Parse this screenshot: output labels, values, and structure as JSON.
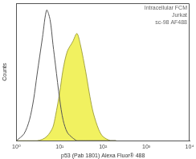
{
  "chart_data": {
    "type": "line",
    "annotations": [
      "Intracellular FCM",
      "Jurkat",
      "sc-98 AF488"
    ],
    "x_label": "p53 (Pab 1801) Alexa Fluor® 488",
    "y_label": "Counts",
    "log": "x",
    "grid": false,
    "tick_labels": "x",
    "xlim": [
      1,
      10000
    ],
    "xticks": [
      {
        "value": 1,
        "label": "10⁰"
      },
      {
        "value": 10,
        "label": "10¹"
      },
      {
        "value": 100,
        "label": "10²"
      },
      {
        "value": 1000,
        "label": "10³"
      },
      {
        "value": 10000,
        "label": "10⁴"
      }
    ],
    "ylim": [
      0,
      100
    ],
    "x": [
      1,
      1.5,
      2,
      2.5,
      3,
      4,
      5,
      6,
      7,
      8,
      10,
      12,
      15,
      20,
      25,
      30,
      40,
      50,
      60,
      80,
      100,
      150,
      200
    ],
    "series": [
      {
        "type": "area",
        "color": "#eeee44",
        "values": [
          0,
          0,
          0,
          0,
          0,
          1,
          3,
          6,
          10,
          18,
          35,
          52,
          65,
          72,
          78,
          70,
          50,
          32,
          20,
          8,
          3,
          0,
          0
        ]
      },
      {
        "type": "line",
        "color": "#555555",
        "values": [
          0,
          5,
          15,
          30,
          48,
          75,
          95,
          88,
          70,
          55,
          30,
          15,
          6,
          2,
          0,
          0,
          0,
          0,
          0,
          0,
          0,
          0,
          0
        ]
      }
    ]
  }
}
